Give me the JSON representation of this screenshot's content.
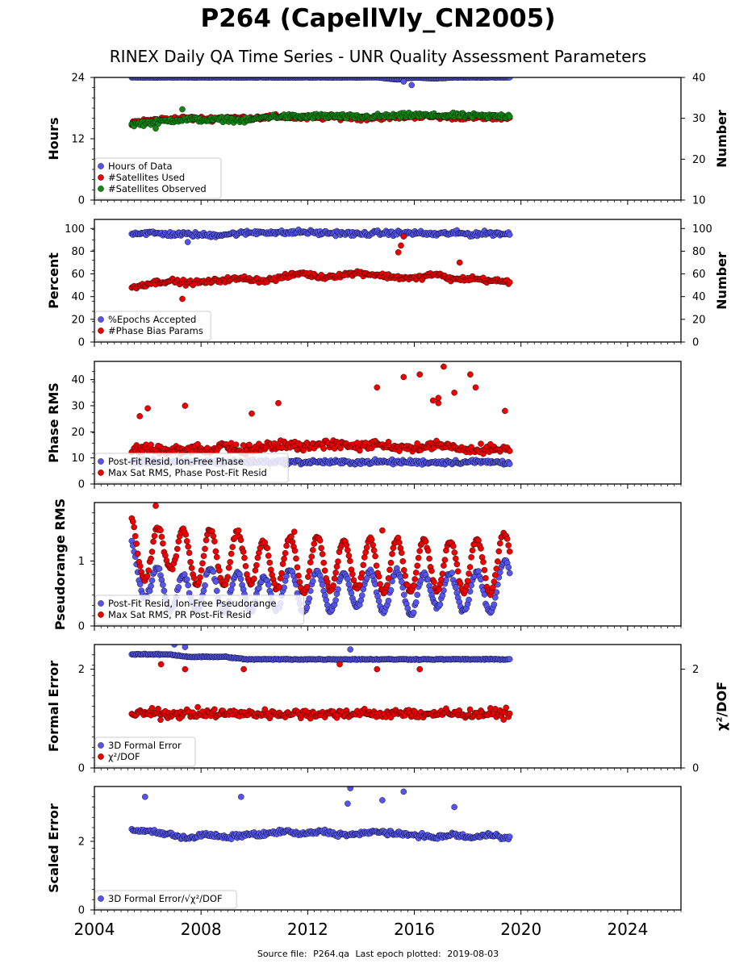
{
  "title": "P264 (CapellVly_CN2005)",
  "subtitle": "RINEX Daily QA Time Series - UNR Quality Assessment Parameters",
  "footer": {
    "source_label": "Source file:",
    "source_file": "P264.qa",
    "last_epoch_label": "Last epoch plotted:",
    "last_epoch": "2019-08-03"
  },
  "colors": {
    "blue": "#5555ee",
    "red": "#ee0000",
    "green": "#118811",
    "marker_edge": "#000000"
  },
  "chart_data": [
    {
      "type": "scatter",
      "ylabel": "Hours",
      "y2label": "Number",
      "xlim": [
        2004,
        2026
      ],
      "ylim": [
        0,
        24
      ],
      "y2lim": [
        10,
        40
      ],
      "yticks": [
        0,
        12,
        24
      ],
      "y2ticks": [
        10,
        20,
        30,
        40
      ],
      "x_tick_labels": [
        "2004",
        "2008",
        "2012",
        "2016",
        "2020",
        "2024"
      ],
      "legend": [
        "Hours of Data",
        "#Satellites Used",
        "#Satellites Observed"
      ],
      "legend_loc": "lower-left",
      "series": [
        {
          "name": "Hours of Data",
          "axis": "left",
          "color": "blue",
          "x_range": [
            2005.4,
            2019.6
          ],
          "values": [
            24,
            24,
            24,
            24,
            24,
            24,
            24,
            24,
            24,
            24,
            24,
            24,
            24,
            24,
            23.6,
            24,
            23.8,
            24,
            24,
            24,
            24
          ],
          "outliers": [
            [
              2015.6,
              23.2
            ],
            [
              2015.9,
              22.5
            ]
          ]
        },
        {
          "name": "#Satellites Used",
          "axis": "right",
          "color": "red",
          "x_range": [
            2005.4,
            2019.6
          ],
          "values": [
            29,
            29.5,
            29.8,
            30,
            29.8,
            30.2,
            30,
            30.2,
            30.4,
            30.1,
            30.2,
            30.3,
            30.0,
            30.2,
            30.3,
            30.5,
            30.4,
            30.3,
            30.2,
            30.1,
            30.3
          ],
          "outliers": []
        },
        {
          "name": "#Satellites Observed",
          "axis": "right",
          "color": "green",
          "x_range": [
            2005.4,
            2019.6
          ],
          "values": [
            28.5,
            29,
            29.5,
            29.8,
            29.6,
            29.8,
            29.4,
            30.3,
            30.5,
            30.4,
            30.6,
            30.5,
            30.3,
            30.5,
            30.6,
            30.8,
            30.6,
            30.7,
            30.6,
            30.5,
            30.6
          ],
          "outliers": [
            [
              2007.3,
              32.2
            ],
            [
              2006.3,
              27.5
            ]
          ]
        }
      ]
    },
    {
      "type": "scatter",
      "ylabel": "Percent",
      "y2label": "Number",
      "xlim": [
        2004,
        2026
      ],
      "ylim": [
        0,
        108
      ],
      "y2lim": [
        0,
        108
      ],
      "yticks": [
        0,
        20,
        40,
        60,
        80,
        100
      ],
      "y2ticks": [
        0,
        20,
        40,
        60,
        80,
        100
      ],
      "legend": [
        "%Epochs Accepted",
        "#Phase Bias Params"
      ],
      "legend_loc": "lower-left",
      "series": [
        {
          "name": "%Epochs Accepted",
          "axis": "left",
          "color": "blue",
          "x_range": [
            2005.4,
            2019.6
          ],
          "values": [
            96,
            96,
            95,
            95,
            94,
            95,
            96,
            97,
            96,
            97,
            96,
            96,
            95,
            96,
            96,
            96,
            95,
            96,
            95,
            96,
            95
          ],
          "outliers": [
            [
              2007.5,
              88
            ]
          ]
        },
        {
          "name": "#Phase Bias Params",
          "axis": "right",
          "color": "red",
          "x_range": [
            2005.4,
            2019.6
          ],
          "values": [
            48,
            52,
            54,
            52,
            53,
            55,
            56,
            54,
            57,
            61,
            57,
            59,
            61,
            59,
            57,
            56,
            60,
            55,
            56,
            54,
            53
          ],
          "outliers": [
            [
              2007.3,
              38
            ],
            [
              2015.6,
              93
            ],
            [
              2015.5,
              85
            ],
            [
              2015.4,
              79
            ],
            [
              2017.7,
              70
            ]
          ]
        }
      ]
    },
    {
      "type": "scatter",
      "ylabel": "Phase RMS",
      "xlim": [
        2004,
        2026
      ],
      "ylim": [
        0,
        47
      ],
      "yticks": [
        0,
        10,
        20,
        30,
        40
      ],
      "legend": [
        "Post-Fit Resid, Ion-Free Phase",
        "Max Sat RMS, Phase Post-Fit Resid"
      ],
      "legend_loc": "lower-left",
      "series": [
        {
          "name": "Post-Fit Resid, Ion-Free Phase",
          "axis": "left",
          "color": "blue",
          "x_range": [
            2005.4,
            2019.6
          ],
          "values": [
            8.5,
            8.5,
            8.5,
            8.3,
            8.5,
            8.4,
            8.5,
            8.6,
            8.5,
            8.4,
            8.5,
            8.3,
            8.4,
            8.5,
            8.4,
            8.4,
            8.3,
            8.4,
            8.5,
            8.4,
            8.3
          ],
          "outliers": []
        },
        {
          "name": "Max Sat RMS, Phase Post-Fit Resid",
          "axis": "left",
          "color": "red",
          "x_range": [
            2005.4,
            2019.6
          ],
          "values": [
            12,
            12,
            12,
            12,
            12,
            13,
            12,
            13,
            14,
            13,
            14,
            14,
            13,
            14,
            13,
            13,
            14,
            13,
            12,
            12,
            12
          ],
          "outliers": [
            [
              2005.7,
              26
            ],
            [
              2006.0,
              29
            ],
            [
              2007.4,
              30
            ],
            [
              2010.9,
              31
            ],
            [
              2009.9,
              27
            ],
            [
              2014.6,
              37
            ],
            [
              2015.6,
              41
            ],
            [
              2016.2,
              42
            ],
            [
              2017.1,
              45
            ],
            [
              2016.7,
              32
            ],
            [
              2017.5,
              35
            ],
            [
              2018.1,
              42
            ],
            [
              2018.3,
              37
            ],
            [
              2016.9,
              31
            ],
            [
              2019.4,
              28
            ],
            [
              2016.9,
              33
            ]
          ]
        }
      ]
    },
    {
      "type": "scatter",
      "ylabel": "Pseudorange RMS",
      "xlim": [
        2004,
        2026
      ],
      "ylim": [
        0,
        1.9
      ],
      "yticks": [
        0,
        1
      ],
      "legend": [
        "Post-Fit Resid, Ion-Free Pseudorange",
        "Max Sat RMS, PR Post-Fit Resid"
      ],
      "legend_loc": "lower-left",
      "series": [
        {
          "name": "Post-Fit Resid, Ion-Free Pseudorange",
          "axis": "left",
          "color": "blue",
          "x_range": [
            2005.4,
            2019.6
          ],
          "values": [
            1.0,
            0.6,
            0.55,
            0.45,
            0.6,
            0.5,
            0.55,
            0.45,
            0.6,
            0.5,
            0.55,
            0.5,
            0.6,
            0.5,
            0.55,
            0.45,
            0.6,
            0.5,
            0.55,
            0.5,
            0.8
          ],
          "seasonal_amplitude": 0.3,
          "outliers": []
        },
        {
          "name": "Max Sat RMS, PR Post-Fit Resid",
          "axis": "left",
          "color": "red",
          "x_range": [
            2005.4,
            2019.6
          ],
          "values": [
            1.3,
            1.0,
            1.3,
            1.0,
            1.1,
            1.0,
            1.1,
            0.9,
            1.0,
            0.9,
            1.0,
            0.9,
            1.0,
            0.9,
            0.95,
            0.9,
            0.95,
            0.9,
            0.95,
            0.9,
            1.1
          ],
          "seasonal_amplitude": 0.4,
          "outliers": [
            [
              2006.3,
              1.85
            ],
            [
              2011.5,
              1.45
            ],
            [
              2014.8,
              1.47
            ]
          ]
        }
      ]
    },
    {
      "type": "scatter",
      "ylabel": "Formal Error",
      "y2label": "χ²/DOF",
      "xlim": [
        2004,
        2026
      ],
      "ylim": [
        0,
        2.5
      ],
      "y2lim": [
        0,
        2.5
      ],
      "yticks": [
        0,
        2
      ],
      "y2ticks": [
        0,
        2
      ],
      "legend": [
        "3D Formal Error",
        "χ²/DOF"
      ],
      "legend_loc": "lower-left",
      "series": [
        {
          "name": "3D Formal Error",
          "axis": "left",
          "color": "blue",
          "x_range": [
            2005.4,
            2019.6
          ],
          "values": [
            2.3,
            2.3,
            2.3,
            2.25,
            2.25,
            2.25,
            2.2,
            2.2,
            2.2,
            2.2,
            2.2,
            2.2,
            2.2,
            2.2,
            2.2,
            2.2,
            2.2,
            2.2,
            2.2,
            2.2,
            2.2
          ],
          "outliers": [
            [
              2007.0,
              2.5
            ],
            [
              2007.4,
              2.45
            ],
            [
              2013.6,
              2.4
            ]
          ]
        },
        {
          "name": "χ²/DOF",
          "axis": "right",
          "color": "red",
          "x_range": [
            2005.4,
            2019.6
          ],
          "values": [
            1.1,
            1.1,
            1.1,
            1.1,
            1.1,
            1.1,
            1.1,
            1.1,
            1.1,
            1.1,
            1.1,
            1.1,
            1.1,
            1.1,
            1.1,
            1.1,
            1.1,
            1.1,
            1.1,
            1.1,
            1.1
          ],
          "outliers": [
            [
              2006.5,
              2.1
            ],
            [
              2007.4,
              2.0
            ],
            [
              2009.6,
              2.0
            ],
            [
              2013.2,
              2.1
            ],
            [
              2014.6,
              2.0
            ],
            [
              2016.2,
              2.0
            ]
          ]
        }
      ]
    },
    {
      "type": "scatter",
      "ylabel": "Scaled Error",
      "xlim": [
        2004,
        2026
      ],
      "ylim": [
        0,
        3.6
      ],
      "yticks": [
        0,
        2
      ],
      "legend": [
        "3D Formal Error/√χ²/DOF"
      ],
      "legend_loc": "lower-left",
      "series": [
        {
          "name": "3D Formal Error/√χ²/DOF",
          "axis": "left",
          "color": "blue",
          "x_range": [
            2005.4,
            2019.6
          ],
          "values": [
            2.3,
            2.3,
            2.2,
            2.1,
            2.2,
            2.1,
            2.2,
            2.2,
            2.3,
            2.2,
            2.3,
            2.2,
            2.2,
            2.3,
            2.2,
            2.2,
            2.1,
            2.2,
            2.1,
            2.2,
            2.1
          ],
          "outliers": [
            [
              2005.9,
              3.3
            ],
            [
              2009.5,
              3.3
            ],
            [
              2013.6,
              3.55
            ],
            [
              2013.5,
              3.1
            ],
            [
              2015.6,
              3.45
            ],
            [
              2014.8,
              3.2
            ],
            [
              2017.5,
              3.0
            ]
          ]
        }
      ]
    }
  ]
}
